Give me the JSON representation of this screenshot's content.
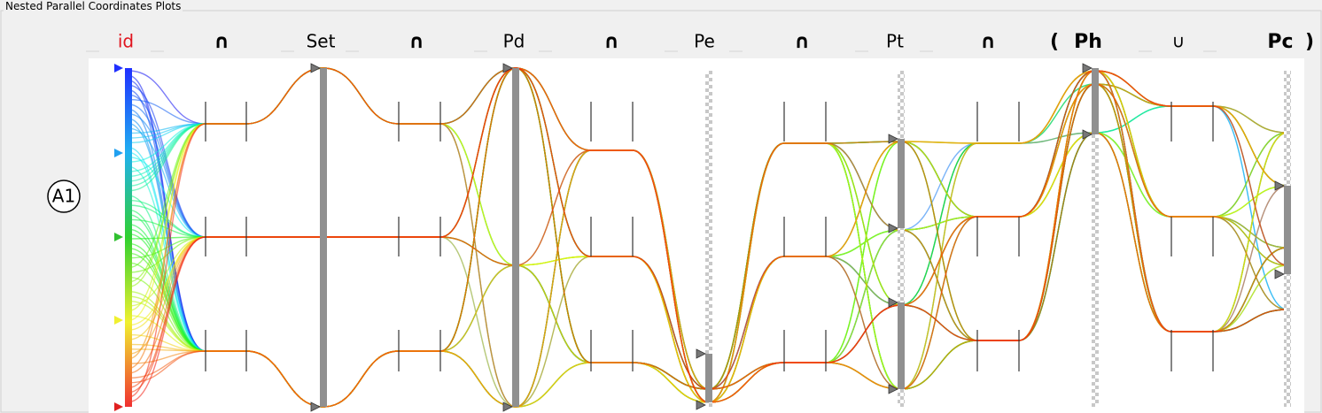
{
  "panel": {
    "title": "Nested Parallel Coordinates Plots"
  },
  "header": {
    "items": [
      "id",
      "∩",
      "Set",
      "∩",
      "Pd",
      "∩",
      "Pe",
      "∩",
      "Pt",
      "∩",
      "(",
      "Ph",
      "∪",
      "Pc",
      ")"
    ]
  },
  "annotation": "A1"
}
